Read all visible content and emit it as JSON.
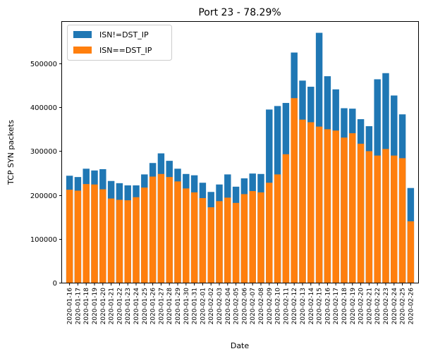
{
  "chart_data": {
    "type": "bar",
    "stacked": true,
    "title": "Port 23 - 78.29%",
    "xlabel": "Date",
    "ylabel": "TCP SYN packets",
    "ylim": [
      0,
      595000
    ],
    "yticks": [
      0,
      100000,
      200000,
      300000,
      400000,
      500000
    ],
    "legend_position": "top-left",
    "categories": [
      "2020-01-16",
      "2020-01-17",
      "2020-01-18",
      "2020-01-19",
      "2020-01-20",
      "2020-01-21",
      "2020-01-22",
      "2020-01-23",
      "2020-01-24",
      "2020-01-25",
      "2020-01-26",
      "2020-01-27",
      "2020-01-28",
      "2020-01-29",
      "2020-01-30",
      "2020-01-31",
      "2020-02-01",
      "2020-02-02",
      "2020-02-03",
      "2020-02-04",
      "2020-02-05",
      "2020-02-06",
      "2020-02-07",
      "2020-02-08",
      "2020-02-09",
      "2020-02-10",
      "2020-02-11",
      "2020-02-12",
      "2020-02-13",
      "2020-02-14",
      "2020-02-15",
      "2020-02-16",
      "2020-02-17",
      "2020-02-18",
      "2020-02-19",
      "2020-02-20",
      "2020-02-21",
      "2020-02-22",
      "2020-02-23",
      "2020-02-24",
      "2020-02-25",
      "2020-02-26"
    ],
    "series": [
      {
        "name": "ISN!=DST_IP",
        "color": "#1f77b4",
        "totals": [
          244000,
          241000,
          260000,
          256000,
          259000,
          232000,
          227000,
          222000,
          222000,
          247000,
          273000,
          295000,
          278000,
          260000,
          248000,
          245000,
          228000,
          207000,
          224000,
          247000,
          219000,
          238000,
          249000,
          248000,
          395000,
          403000,
          410000,
          525000,
          461000,
          447000,
          570000,
          471000,
          441000,
          398000,
          397000,
          373000,
          357000,
          464000,
          478000,
          427000,
          384000,
          216000
        ]
      },
      {
        "name": "ISN==DST_IP",
        "color": "#ff7f0e",
        "values": [
          212000,
          210000,
          225000,
          224000,
          213000,
          192000,
          189000,
          188000,
          195000,
          217000,
          242000,
          248000,
          241000,
          231000,
          215000,
          206000,
          193000,
          172000,
          186000,
          194000,
          182000,
          202000,
          209000,
          206000,
          228000,
          247000,
          293000,
          421000,
          372000,
          366000,
          356000,
          350000,
          347000,
          331000,
          341000,
          317000,
          300000,
          290000,
          305000,
          290000,
          284000,
          140000
        ]
      }
    ]
  }
}
